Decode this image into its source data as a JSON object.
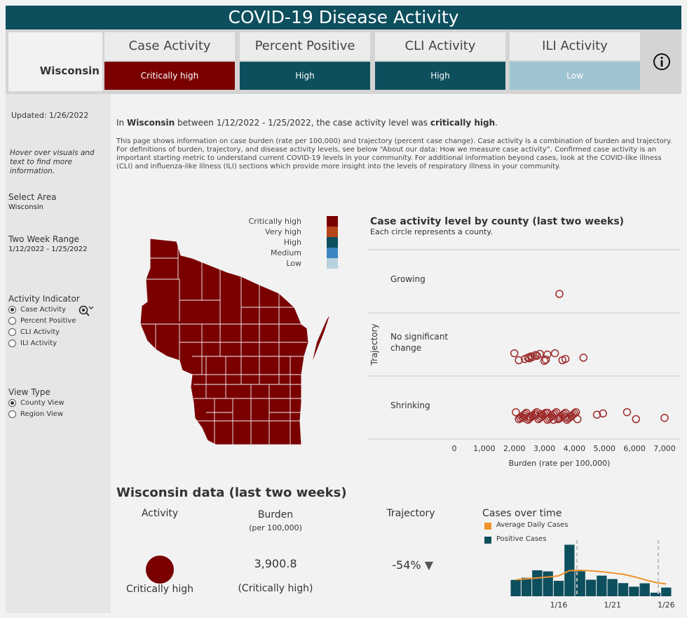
{
  "title": "COVID-19 Disease Activity",
  "region": "Wisconsin",
  "indicators": [
    {
      "label": "Case Activity",
      "level": "Critically high",
      "color": "#7a0000"
    },
    {
      "label": "Percent Positive",
      "level": "High",
      "color": "#0e4f5e"
    },
    {
      "label": "CLI Activity",
      "level": "High",
      "color": "#0e4f5e"
    },
    {
      "label": "ILI Activity",
      "level": "Low",
      "color": "#9fc4d1"
    }
  ],
  "sidebar": {
    "updated": "Updated: 1/26/2022",
    "hover_note": "Hover over visuals and text to find more information.",
    "select_area_label": "Select Area",
    "select_area_value": "Wisconsin",
    "range_label": "Two Week Range",
    "range_value": "1/12/2022 - 1/25/2022",
    "activity_label": "Activity Indicator",
    "activity_options": [
      "Case Activity",
      "Percent Positive",
      "CLI Activity",
      "ILI Activity"
    ],
    "activity_selected": 0,
    "view_label": "View Type",
    "view_options": [
      "County View",
      "Region View"
    ],
    "view_selected": 0
  },
  "summary": {
    "p1": "In ",
    "region": "Wisconsin",
    "p2": " between 1/12/2022 - 1/25/2022, the case activity level was ",
    "level": "critically high",
    "p3": ".",
    "description": "This page shows information on case burden (rate per 100,000) and trajectory (percent case change). Case activity is a combination of burden and trajectory. For definitions of burden, trajectory, and disease activity levels, see below “About our data: How we measure case activity”. Confirmed case activity is an important starting metric to understand current COVID-19 levels in your community. For additional information beyond cases, look at the COVID-like illness (CLI) and influenza-like illness (ILI) sections which provide more insight into the levels of respiratory illness in your community."
  },
  "map_legend": [
    {
      "label": "Critically high",
      "color": "#7a0000"
    },
    {
      "label": "Very high",
      "color": "#b5451b"
    },
    {
      "label": "High",
      "color": "#0e4f5e"
    },
    {
      "label": "Medium",
      "color": "#3a86c0"
    },
    {
      "label": "Low",
      "color": "#b9d1dc"
    }
  ],
  "scatter": {
    "title": "Case activity level by county (last two weeks)",
    "subtitle": "Each circle represents a county.",
    "ylabel": "Trajectory",
    "xlabel": "Burden (rate per 100,000)",
    "xticks": [
      "0",
      "1,000",
      "2,000",
      "3,000",
      "4,000",
      "5,000",
      "6,000",
      "7,000"
    ],
    "groups": [
      "Growing",
      "No significant\nchange",
      "Shrinking"
    ]
  },
  "chart_data": [
    {
      "type": "scatter",
      "title": "Case activity level by county (last two weeks)",
      "xlabel": "Burden (rate per 100,000)",
      "ylabel": "Trajectory",
      "xlim": [
        0,
        7000
      ],
      "categories": [
        "Growing",
        "No significant change",
        "Shrinking"
      ],
      "series": [
        {
          "name": "Growing",
          "x": [
            3500
          ]
        },
        {
          "name": "No significant change",
          "x": [
            2000,
            2150,
            2350,
            2450,
            2550,
            2700,
            2850,
            3000,
            3050,
            2500,
            2600,
            2750,
            3100,
            3350,
            3600,
            3700,
            4300
          ]
        },
        {
          "name": "Shrinking",
          "x": [
            2050,
            2150,
            2200,
            2250,
            2300,
            2350,
            2400,
            2450,
            2500,
            2550,
            2600,
            2650,
            2700,
            2750,
            2800,
            2850,
            2900,
            2950,
            3000,
            3050,
            3100,
            3150,
            3200,
            3250,
            3300,
            3350,
            3400,
            3450,
            3500,
            3550,
            3600,
            3650,
            3700,
            3750,
            3800,
            3850,
            3900,
            3950,
            4000,
            4050,
            4100,
            2300,
            2500,
            2700,
            2900,
            3100,
            3300,
            3500,
            3700,
            3900,
            4750,
            4950,
            5750,
            6050,
            7000
          ]
        }
      ]
    },
    {
      "type": "bar",
      "title": "Cases over time",
      "categories": [
        "1/12",
        "1/13",
        "1/14",
        "1/15",
        "1/16",
        "1/17",
        "1/18",
        "1/19",
        "1/20",
        "1/21",
        "1/22",
        "1/23",
        "1/24",
        "1/25",
        "1/26"
      ],
      "series": [
        {
          "name": "Positive Cases",
          "values": [
            9200,
            10400,
            14600,
            14000,
            8700,
            29000,
            14100,
            9300,
            11600,
            9700,
            7400,
            5400,
            7300,
            2000,
            4900
          ]
        },
        {
          "name": "Average Daily Cases",
          "values": [
            9300,
            9800,
            10300,
            10800,
            11500,
            14400,
            14600,
            14300,
            13800,
            13100,
            12400,
            11000,
            9300,
            7800,
            6900
          ]
        }
      ],
      "xticks": [
        "1/16",
        "1/21",
        "1/26"
      ]
    }
  ],
  "kpis": {
    "section_title": "Wisconsin data (last two weeks)",
    "activity_label": "Activity",
    "activity_value": "Critically high",
    "burden_label": "Burden",
    "burden_sub": "(per 100,000)",
    "burden_value": "3,900.8",
    "burden_level": "(Critically high)",
    "trajectory_label": "Trajectory",
    "trajectory_value": "-54%",
    "trajectory_arrow": "▼",
    "cases_title": "Cases over time",
    "legend_avg": "Average Daily Cases",
    "legend_pos": "Positive Cases"
  }
}
